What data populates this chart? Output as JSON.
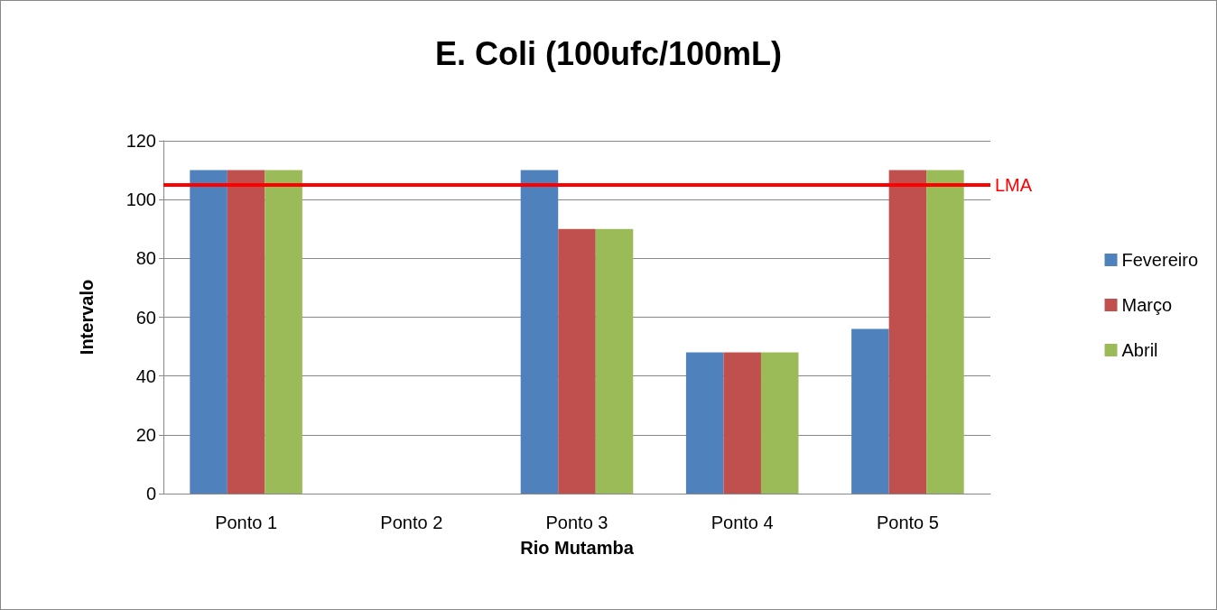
{
  "chart_data": {
    "type": "bar",
    "title": "E. Coli (100ufc/100mL)",
    "xlabel": "Rio Mutamba",
    "ylabel": "Intervalo",
    "categories": [
      "Ponto 1",
      "Ponto 2",
      "Ponto 3",
      "Ponto 4",
      "Ponto 5"
    ],
    "series": [
      {
        "name": "Fevereiro",
        "color": "#4f81bd",
        "values": [
          110,
          0,
          110,
          48,
          56
        ]
      },
      {
        "name": "Março",
        "color": "#c0504d",
        "values": [
          110,
          0,
          90,
          48,
          110
        ]
      },
      {
        "name": "Abril",
        "color": "#9bbb59",
        "values": [
          110,
          0,
          90,
          48,
          110
        ]
      }
    ],
    "ylim": [
      0,
      120
    ],
    "yticks": [
      0,
      20,
      40,
      60,
      80,
      100,
      120
    ],
    "grid": "y",
    "legend": "right",
    "ref_lines": [
      {
        "axis": "y",
        "value": 105,
        "label": "LMA",
        "color": "#ff0000"
      }
    ]
  }
}
